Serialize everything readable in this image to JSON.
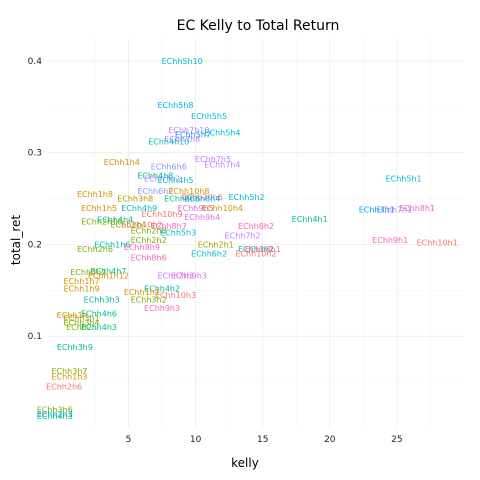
{
  "chart_data": {
    "type": "scatter",
    "title": "EC Kelly to Total Return",
    "xlabel": "kelly",
    "ylabel": "total_ret",
    "xlim": [
      -1,
      30
    ],
    "ylim": [
      0,
      0.425
    ],
    "xticks": [
      5,
      10,
      15,
      20,
      25
    ],
    "yticks": [
      0.1,
      0.2,
      0.3,
      0.4
    ],
    "grid": true,
    "legend": "none",
    "points": [
      {
        "label": "EChh5h10",
        "x": 9.0,
        "y": 0.4,
        "color": "#00BCD8"
      },
      {
        "label": "EChh5h8",
        "x": 8.5,
        "y": 0.352,
        "color": "#00B4EF"
      },
      {
        "label": "EChh5h5",
        "x": 11.0,
        "y": 0.34,
        "color": "#00BCD8"
      },
      {
        "label": "EChh7h10",
        "x": 9.5,
        "y": 0.325,
        "color": "#C77CFF"
      },
      {
        "label": "EChh5h7",
        "x": 9.8,
        "y": 0.32,
        "color": "#00A9FF"
      },
      {
        "label": "EChh5h4",
        "x": 12.0,
        "y": 0.322,
        "color": "#00BCD8"
      },
      {
        "label": "EChh7h8",
        "x": 9.0,
        "y": 0.315,
        "color": "#C77CFF"
      },
      {
        "label": "EChh4h10",
        "x": 8.0,
        "y": 0.312,
        "color": "#00BFC4"
      },
      {
        "label": "EChh7h5",
        "x": 11.3,
        "y": 0.293,
        "color": "#C77CFF"
      },
      {
        "label": "EChh7h4",
        "x": 12.0,
        "y": 0.287,
        "color": "#C77CFF"
      },
      {
        "label": "EChh6h6",
        "x": 8.0,
        "y": 0.285,
        "color": "#9590FF"
      },
      {
        "label": "EChh1h4",
        "x": 4.5,
        "y": 0.29,
        "color": "#D89000"
      },
      {
        "label": "EChh4h8",
        "x": 7.0,
        "y": 0.275,
        "color": "#00C08B"
      },
      {
        "label": "EChh7h2",
        "x": 7.5,
        "y": 0.272,
        "color": "#C77CFF"
      },
      {
        "label": "EChh4h5",
        "x": 8.5,
        "y": 0.27,
        "color": "#00BCD8"
      },
      {
        "label": "EChh5h1",
        "x": 25.5,
        "y": 0.272,
        "color": "#00BCD8"
      },
      {
        "label": "EChh1h8",
        "x": 2.5,
        "y": 0.255,
        "color": "#D89000"
      },
      {
        "label": "EChh6h2",
        "x": 7.0,
        "y": 0.258,
        "color": "#9590FF"
      },
      {
        "label": "EChh10h8",
        "x": 9.5,
        "y": 0.258,
        "color": "#D89000"
      },
      {
        "label": "EChh3h8",
        "x": 5.5,
        "y": 0.25,
        "color": "#A3A500"
      },
      {
        "label": "EChh4h6",
        "x": 9.0,
        "y": 0.25,
        "color": "#00C08B"
      },
      {
        "label": "EChh10h6",
        "x": 10.5,
        "y": 0.252,
        "color": "#F8766D"
      },
      {
        "label": "EChh8h4",
        "x": 10.5,
        "y": 0.25,
        "color": "#00A9FF"
      },
      {
        "label": "EChh5h2",
        "x": 13.8,
        "y": 0.252,
        "color": "#00BCD8"
      },
      {
        "label": "EChh1h5",
        "x": 2.8,
        "y": 0.24,
        "color": "#D89000"
      },
      {
        "label": "EChh4h9",
        "x": 5.8,
        "y": 0.24,
        "color": "#00BFC4"
      },
      {
        "label": "EChh9h5",
        "x": 10.0,
        "y": 0.24,
        "color": "#E76BF3"
      },
      {
        "label": "EChh10h4",
        "x": 12.0,
        "y": 0.24,
        "color": "#D89000"
      },
      {
        "label": "EChh8h1",
        "x": 26.5,
        "y": 0.24,
        "color": "#FF61C3"
      },
      {
        "label": "EChh7h1",
        "x": 24.8,
        "y": 0.238,
        "color": "#C77CFF"
      },
      {
        "label": "EChh3h1",
        "x": 23.5,
        "y": 0.238,
        "color": "#00A9FF"
      },
      {
        "label": "EChh4h1",
        "x": 18.5,
        "y": 0.228,
        "color": "#00C08B"
      },
      {
        "label": "EChh10h9",
        "x": 7.5,
        "y": 0.233,
        "color": "#F8766D"
      },
      {
        "label": "EChh9h4",
        "x": 10.5,
        "y": 0.23,
        "color": "#E76BF3"
      },
      {
        "label": "EChh2h10",
        "x": 3.0,
        "y": 0.225,
        "color": "#7CAE00"
      },
      {
        "label": "EChh4h4",
        "x": 4.0,
        "y": 0.227,
        "color": "#00C08B"
      },
      {
        "label": "EChh2h4",
        "x": 5.0,
        "y": 0.222,
        "color": "#7CAE00"
      },
      {
        "label": "EChh10h2",
        "x": 6.0,
        "y": 0.222,
        "color": "#F8766D"
      },
      {
        "label": "EChh8h7",
        "x": 8.0,
        "y": 0.22,
        "color": "#FF61C3"
      },
      {
        "label": "EChh8h2",
        "x": 14.5,
        "y": 0.22,
        "color": "#FF61C3"
      },
      {
        "label": "EChh2h8",
        "x": 6.5,
        "y": 0.215,
        "color": "#7CAE00"
      },
      {
        "label": "EChh5h3",
        "x": 8.7,
        "y": 0.213,
        "color": "#00BCD8"
      },
      {
        "label": "EChh7h2",
        "x": 13.5,
        "y": 0.21,
        "color": "#C77CFF"
      },
      {
        "label": "EChh2h2",
        "x": 6.5,
        "y": 0.205,
        "color": "#7CAE00"
      },
      {
        "label": "EChh2h1",
        "x": 11.5,
        "y": 0.2,
        "color": "#A3A500"
      },
      {
        "label": "EChh9h1",
        "x": 24.5,
        "y": 0.205,
        "color": "#FF61C3"
      },
      {
        "label": "EChh10h1",
        "x": 28.0,
        "y": 0.202,
        "color": "#F8766D"
      },
      {
        "label": "EChh1h6",
        "x": 3.8,
        "y": 0.2,
        "color": "#00BFC4"
      },
      {
        "label": "EChh8h9",
        "x": 6.0,
        "y": 0.197,
        "color": "#FF61C3"
      },
      {
        "label": "EChh3h2",
        "x": 14.5,
        "y": 0.195,
        "color": "#00C08B"
      },
      {
        "label": "EChh8h1",
        "x": 15.0,
        "y": 0.195,
        "color": "#FF61C3"
      },
      {
        "label": "EChh2h6",
        "x": 2.5,
        "y": 0.195,
        "color": "#7CAE00"
      },
      {
        "label": "EChh6h2",
        "x": 11.0,
        "y": 0.19,
        "color": "#00BCD8"
      },
      {
        "label": "EChh10h2",
        "x": 14.5,
        "y": 0.19,
        "color": "#F8766D"
      },
      {
        "label": "EChh8h6",
        "x": 6.5,
        "y": 0.186,
        "color": "#FF61C3"
      },
      {
        "label": "EChh3h7",
        "x": 2.0,
        "y": 0.17,
        "color": "#7CAE00"
      },
      {
        "label": "EChh4h7",
        "x": 3.5,
        "y": 0.171,
        "color": "#00C08B"
      },
      {
        "label": "EChh1h12",
        "x": 3.5,
        "y": 0.166,
        "color": "#D89000"
      },
      {
        "label": "EChh7h3",
        "x": 8.5,
        "y": 0.166,
        "color": "#C77CFF"
      },
      {
        "label": "EChh9h3",
        "x": 9.5,
        "y": 0.166,
        "color": "#E76BF3"
      },
      {
        "label": "EChh1h7",
        "x": 1.5,
        "y": 0.16,
        "color": "#D89000"
      },
      {
        "label": "EChh1h9",
        "x": 1.5,
        "y": 0.152,
        "color": "#D89000"
      },
      {
        "label": "EChh4h2",
        "x": 7.5,
        "y": 0.152,
        "color": "#00C08B"
      },
      {
        "label": "EChh1h1",
        "x": 6.0,
        "y": 0.148,
        "color": "#D89000"
      },
      {
        "label": "EChh10h3",
        "x": 8.5,
        "y": 0.145,
        "color": "#F8766D"
      },
      {
        "label": "EChh3h3",
        "x": 3.0,
        "y": 0.14,
        "color": "#00C08B"
      },
      {
        "label": "EChh3h2",
        "x": 6.5,
        "y": 0.14,
        "color": "#7CAE00"
      },
      {
        "label": "EChh9h3",
        "x": 7.5,
        "y": 0.131,
        "color": "#FF61C3"
      },
      {
        "label": "EChh4h6",
        "x": 2.8,
        "y": 0.125,
        "color": "#00C08B"
      },
      {
        "label": "EChh1h",
        "x": 0.8,
        "y": 0.123,
        "color": "#D89000"
      },
      {
        "label": "EChh3h1",
        "x": 1.5,
        "y": 0.12,
        "color": "#A3A500"
      },
      {
        "label": "EChh3h4",
        "x": 1.5,
        "y": 0.115,
        "color": "#7CAE00"
      },
      {
        "label": "EChh2h",
        "x": 1.5,
        "y": 0.11,
        "color": "#7CAE00"
      },
      {
        "label": "EChh4h3",
        "x": 2.8,
        "y": 0.11,
        "color": "#00C08B"
      },
      {
        "label": "EChh3h9",
        "x": 1.0,
        "y": 0.088,
        "color": "#00C08B"
      },
      {
        "label": "EChh3h7",
        "x": 0.6,
        "y": 0.062,
        "color": "#7CAE00"
      },
      {
        "label": "EChh1h3",
        "x": 0.6,
        "y": 0.056,
        "color": "#D89000"
      },
      {
        "label": "EChh2h6",
        "x": 0.2,
        "y": 0.045,
        "color": "#F8766D"
      },
      {
        "label": "EChh3h6",
        "x": -0.5,
        "y": 0.02,
        "color": "#7CAE00"
      },
      {
        "label": "EChh2h3",
        "x": -0.5,
        "y": 0.015,
        "color": "#00A9FF"
      },
      {
        "label": "EChh4h3",
        "x": -0.5,
        "y": 0.013,
        "color": "#00C08B"
      }
    ]
  }
}
